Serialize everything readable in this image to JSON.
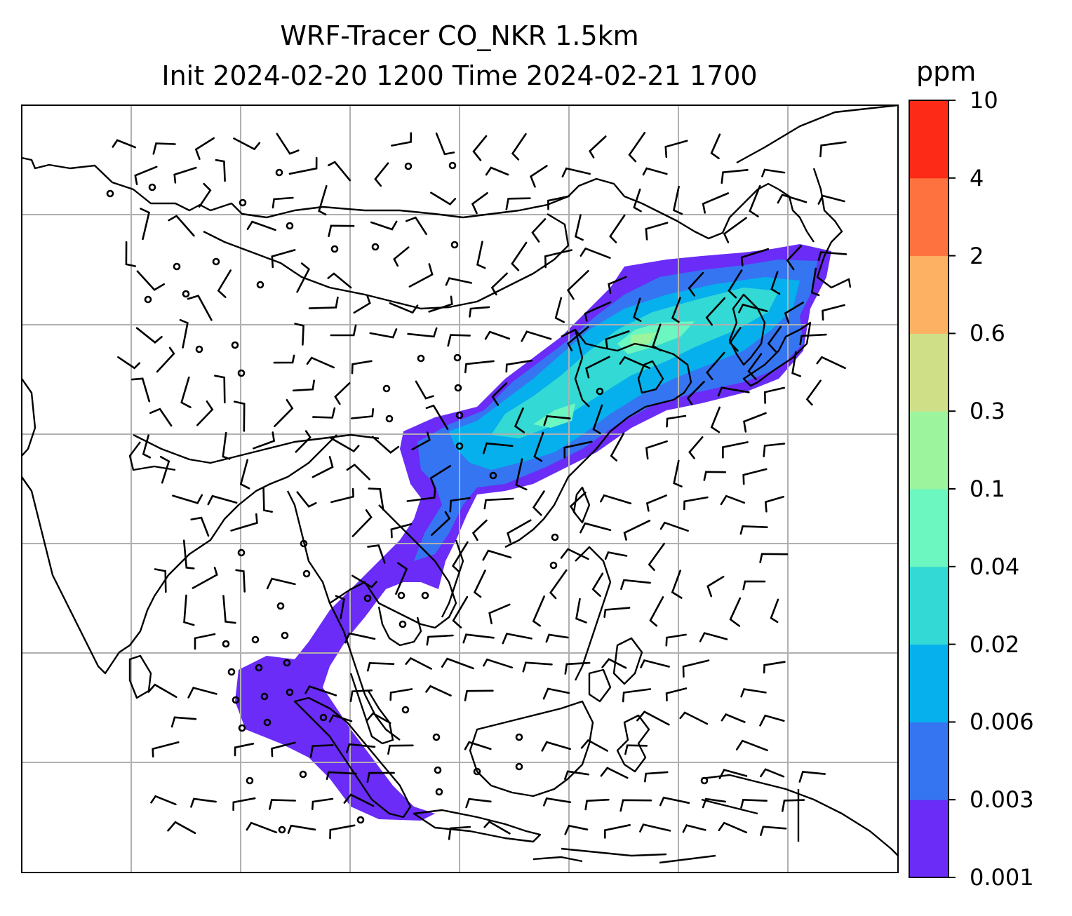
{
  "title": {
    "line1": "WRF-Tracer CO_NKR 1.5km",
    "line2": "Init 2024-02-20 1200 Time 2024-02-21 1700"
  },
  "colorbar": {
    "unit": "ppm",
    "levels": [
      "0.001",
      "0.003",
      "0.006",
      "0.02",
      "0.04",
      "0.1",
      "0.3",
      "0.6",
      "2",
      "4",
      "10"
    ],
    "colors": [
      "#6a2cf6",
      "#3575f2",
      "#06b0ec",
      "#33d9d4",
      "#6cf6c0",
      "#9cf59c",
      "#cfdf88",
      "#fdb163",
      "#fe7240",
      "#fd2a17"
    ]
  },
  "colors": {
    "frame": "#000000",
    "grid": "#b0b0b0",
    "coastline": "#000000",
    "wind_barb": "#000000"
  },
  "map_elements": [
    "coastlines",
    "lat-lon gridlines",
    "wind barbs",
    "CO tracer plume"
  ]
}
